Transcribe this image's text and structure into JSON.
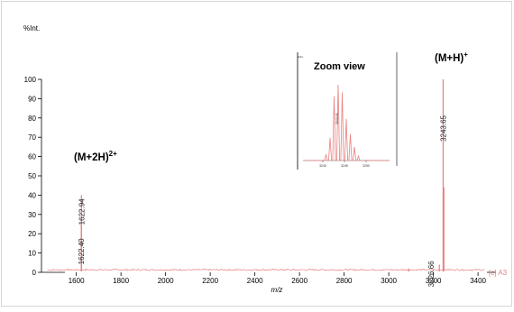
{
  "chart_data": {
    "type": "line",
    "ylabel": "%Int.",
    "xlabel": "m/z",
    "xlim": [
      1460,
      3440
    ],
    "ylim": [
      0,
      100
    ],
    "x_ticks": [
      1600,
      1800,
      2000,
      2200,
      2400,
      2600,
      2800,
      3000,
      3200,
      3400
    ],
    "y_ticks": [
      0,
      10,
      20,
      30,
      40,
      50,
      60,
      70,
      80,
      90,
      100
    ],
    "colors": {
      "trace": "#e88080",
      "axis": "#000000"
    },
    "series": [
      {
        "name": "[c] A3",
        "peaks": [
          {
            "x": 1622.94,
            "y": 40
          },
          {
            "x": 1622.4,
            "y": 26
          },
          {
            "x": 3226.66,
            "y": 4
          },
          {
            "x": 3243.65,
            "y": 100
          },
          {
            "x": 3247.0,
            "y": 44
          },
          {
            "x": 3090.0,
            "y": 2
          }
        ]
      }
    ],
    "annotations": [
      {
        "x": 1622.94,
        "y": 40,
        "text": "1622.94"
      },
      {
        "x": 1622.4,
        "y": 26,
        "text": "1622.40"
      },
      {
        "x": 3243.65,
        "y": 100,
        "text": "3243.65"
      },
      {
        "x": 3226.66,
        "y": 4,
        "text": "3226.66"
      }
    ],
    "ion_labels": [
      {
        "main": "(M+2H)",
        "sup": "2+"
      },
      {
        "main": "(M+H)",
        "sup": "+"
      }
    ],
    "inset": {
      "title": "Zoom view",
      "ylabel": "%Int.",
      "x_ticks": [
        "3240",
        "3245",
        "3250"
      ],
      "peak_label": "3243.65",
      "profile": [
        0,
        0.08,
        0.3,
        0.85,
        1.0,
        0.9,
        0.55,
        0.35,
        0.18,
        0.06,
        0
      ]
    }
  }
}
